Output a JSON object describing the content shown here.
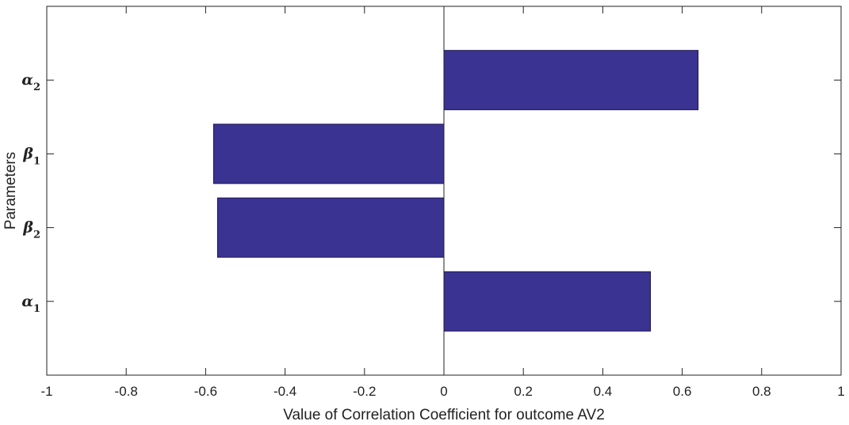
{
  "chart_data": {
    "type": "bar",
    "orientation": "horizontal",
    "categories": [
      "α1",
      "β2",
      "β1",
      "α2"
    ],
    "category_labels": [
      {
        "main": "α",
        "sub": "1"
      },
      {
        "main": "β",
        "sub": "2"
      },
      {
        "main": "β",
        "sub": "1"
      },
      {
        "main": "α",
        "sub": "2"
      }
    ],
    "values": [
      0.52,
      -0.57,
      -0.58,
      0.64
    ],
    "xlabel": "Value of Correlation Coefficient for outcome AV2",
    "ylabel": "Parameters",
    "xlim": [
      -1,
      1
    ],
    "xticks": [
      -1,
      -0.8,
      -0.6,
      -0.4,
      -0.2,
      0,
      0.2,
      0.4,
      0.6,
      0.8,
      1
    ],
    "xtick_labels": [
      "-1",
      "-0.8",
      "-0.6",
      "-0.4",
      "-0.2",
      "0",
      "0.2",
      "0.4",
      "0.6",
      "0.8",
      "1"
    ],
    "grid": false,
    "bar_color": "#3b3391"
  }
}
